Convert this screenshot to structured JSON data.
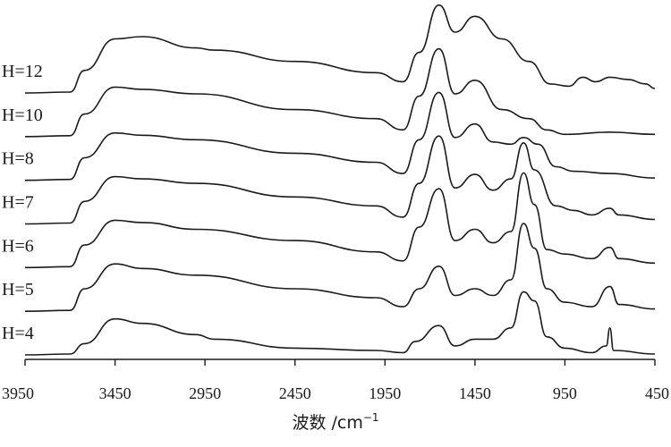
{
  "chart_data": {
    "type": "line",
    "xlabel": "波数 /cm",
    "xlabel_exponent": "−1",
    "x_reversed": true,
    "xlim": [
      3950,
      450
    ],
    "x_ticks": [
      3950,
      3450,
      2950,
      2450,
      1950,
      1450,
      950,
      450
    ],
    "y_axis_shown": false,
    "grid": false,
    "line_color": "#1a1a1a",
    "series": [
      {
        "name": "H=12",
        "baseline": 0.9,
        "points": [
          [
            3950,
            0
          ],
          [
            3700,
            0.02
          ],
          [
            3620,
            0.5
          ],
          [
            3450,
            1.2
          ],
          [
            3300,
            1.25
          ],
          [
            3000,
            1.0
          ],
          [
            2900,
            0.95
          ],
          [
            2450,
            0.7
          ],
          [
            2000,
            0.45
          ],
          [
            1850,
            0.25
          ],
          [
            1760,
            0.9
          ],
          [
            1650,
            1.95
          ],
          [
            1560,
            1.35
          ],
          [
            1450,
            1.7
          ],
          [
            1300,
            1.2
          ],
          [
            1150,
            0.7
          ],
          [
            1030,
            0.2
          ],
          [
            930,
            0.15
          ],
          [
            850,
            0.35
          ],
          [
            780,
            0.25
          ],
          [
            700,
            0.35
          ],
          [
            600,
            0.3
          ],
          [
            500,
            0.2
          ],
          [
            450,
            0.1
          ]
        ]
      },
      {
        "name": "H=10",
        "baseline": 0.9,
        "points": [
          [
            3950,
            0
          ],
          [
            3700,
            0.02
          ],
          [
            3620,
            0.5
          ],
          [
            3450,
            1.1
          ],
          [
            3300,
            1.05
          ],
          [
            3000,
            0.95
          ],
          [
            2450,
            0.6
          ],
          [
            2000,
            0.4
          ],
          [
            1850,
            0.15
          ],
          [
            1760,
            0.9
          ],
          [
            1650,
            1.95
          ],
          [
            1560,
            0.95
          ],
          [
            1450,
            1.25
          ],
          [
            1300,
            0.6
          ],
          [
            1150,
            0.4
          ],
          [
            1050,
            0.15
          ],
          [
            950,
            0.05
          ],
          [
            700,
            0.1
          ],
          [
            450,
            0.05
          ]
        ]
      },
      {
        "name": "H=8",
        "baseline": 0.92,
        "points": [
          [
            3950,
            0
          ],
          [
            3700,
            0.02
          ],
          [
            3620,
            0.5
          ],
          [
            3450,
            1.05
          ],
          [
            3300,
            1.0
          ],
          [
            3000,
            0.9
          ],
          [
            2450,
            0.6
          ],
          [
            2000,
            0.4
          ],
          [
            1850,
            0.15
          ],
          [
            1760,
            0.9
          ],
          [
            1650,
            1.95
          ],
          [
            1560,
            0.95
          ],
          [
            1450,
            1.25
          ],
          [
            1350,
            0.85
          ],
          [
            1250,
            0.8
          ],
          [
            1180,
            0.95
          ],
          [
            1100,
            0.8
          ],
          [
            1000,
            0.3
          ],
          [
            900,
            0.2
          ],
          [
            700,
            0.15
          ],
          [
            450,
            0.05
          ]
        ]
      },
      {
        "name": "H=7",
        "baseline": 0.94,
        "points": [
          [
            3950,
            0
          ],
          [
            3700,
            0.02
          ],
          [
            3620,
            0.5
          ],
          [
            3450,
            1.05
          ],
          [
            3300,
            1.0
          ],
          [
            3000,
            0.9
          ],
          [
            2450,
            0.6
          ],
          [
            2000,
            0.4
          ],
          [
            1850,
            0.15
          ],
          [
            1760,
            0.9
          ],
          [
            1650,
            1.95
          ],
          [
            1560,
            0.8
          ],
          [
            1450,
            1.1
          ],
          [
            1350,
            0.75
          ],
          [
            1250,
            1.0
          ],
          [
            1180,
            1.8
          ],
          [
            1120,
            1.2
          ],
          [
            1000,
            0.4
          ],
          [
            900,
            0.3
          ],
          [
            800,
            0.2
          ],
          [
            700,
            0.35
          ],
          [
            650,
            0.2
          ],
          [
            450,
            0.1
          ]
        ]
      },
      {
        "name": "H=6",
        "baseline": 0.96,
        "points": [
          [
            3950,
            0
          ],
          [
            3700,
            0.02
          ],
          [
            3620,
            0.5
          ],
          [
            3450,
            1.05
          ],
          [
            3300,
            1.0
          ],
          [
            3000,
            0.85
          ],
          [
            2450,
            0.6
          ],
          [
            2000,
            0.35
          ],
          [
            1850,
            0.15
          ],
          [
            1760,
            0.9
          ],
          [
            1650,
            1.75
          ],
          [
            1560,
            0.6
          ],
          [
            1450,
            0.85
          ],
          [
            1350,
            0.55
          ],
          [
            1250,
            0.8
          ],
          [
            1180,
            2.1
          ],
          [
            1120,
            1.4
          ],
          [
            1050,
            0.4
          ],
          [
            950,
            0.3
          ],
          [
            800,
            0.2
          ],
          [
            700,
            0.45
          ],
          [
            650,
            0.2
          ],
          [
            450,
            0.1
          ]
        ]
      },
      {
        "name": "H=5",
        "baseline": 0.98,
        "points": [
          [
            3950,
            0
          ],
          [
            3700,
            0.02
          ],
          [
            3620,
            0.5
          ],
          [
            3450,
            1.05
          ],
          [
            3300,
            0.95
          ],
          [
            3000,
            0.8
          ],
          [
            2450,
            0.5
          ],
          [
            2000,
            0.3
          ],
          [
            1850,
            0.1
          ],
          [
            1760,
            0.5
          ],
          [
            1650,
            1.0
          ],
          [
            1560,
            0.35
          ],
          [
            1450,
            0.5
          ],
          [
            1350,
            0.35
          ],
          [
            1250,
            0.7
          ],
          [
            1180,
            1.95
          ],
          [
            1120,
            1.4
          ],
          [
            1050,
            0.5
          ],
          [
            950,
            0.2
          ],
          [
            800,
            0.1
          ],
          [
            700,
            0.55
          ],
          [
            650,
            0.15
          ],
          [
            450,
            0.05
          ]
        ]
      },
      {
        "name": "H=4",
        "baseline": 1.0,
        "points": [
          [
            3950,
            0
          ],
          [
            3700,
            0.02
          ],
          [
            3620,
            0.25
          ],
          [
            3450,
            0.8
          ],
          [
            3300,
            0.7
          ],
          [
            3000,
            0.45
          ],
          [
            2900,
            0.35
          ],
          [
            2450,
            0.15
          ],
          [
            2000,
            0.1
          ],
          [
            1850,
            0.05
          ],
          [
            1780,
            0.3
          ],
          [
            1650,
            0.65
          ],
          [
            1560,
            0.2
          ],
          [
            1450,
            0.35
          ],
          [
            1350,
            0.35
          ],
          [
            1250,
            0.6
          ],
          [
            1180,
            1.4
          ],
          [
            1120,
            1.2
          ],
          [
            1050,
            0.4
          ],
          [
            950,
            0.15
          ],
          [
            800,
            0.05
          ],
          [
            720,
            0.2
          ],
          [
            700,
            0.6
          ],
          [
            680,
            0.1
          ],
          [
            450,
            0.02
          ]
        ]
      }
    ]
  }
}
